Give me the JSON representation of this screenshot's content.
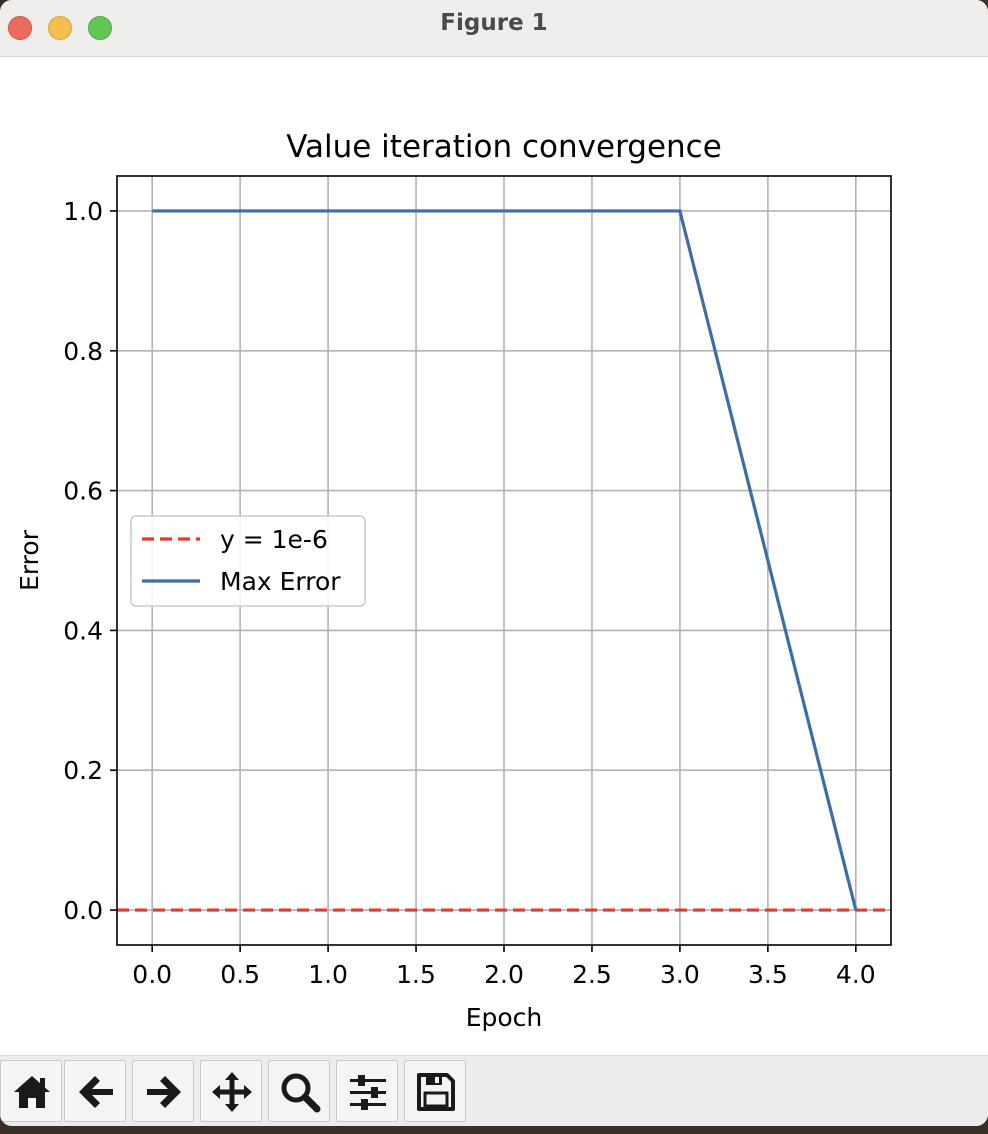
{
  "window": {
    "title": "Figure 1"
  },
  "colors": {
    "threshold_line": "#e8382c",
    "max_error_line": "#3a6ea8",
    "grid": "#b3b3b3"
  },
  "chart_data": {
    "type": "line",
    "title": "Value iteration convergence",
    "xlabel": "Epoch",
    "ylabel": "Error",
    "xlim": [
      -0.2,
      4.2
    ],
    "ylim": [
      -0.05,
      1.05
    ],
    "xticks": [
      0.0,
      0.5,
      1.0,
      1.5,
      2.0,
      2.5,
      3.0,
      3.5,
      4.0
    ],
    "xtick_labels": [
      "0.0",
      "0.5",
      "1.0",
      "1.5",
      "2.0",
      "2.5",
      "3.0",
      "3.5",
      "4.0"
    ],
    "yticks": [
      0.0,
      0.2,
      0.4,
      0.6,
      0.8,
      1.0
    ],
    "ytick_labels": [
      "0.0",
      "0.2",
      "0.4",
      "0.6",
      "0.8",
      "1.0"
    ],
    "grid": true,
    "legend_position": "center-left",
    "series": [
      {
        "name": "y = 1e-6",
        "style": "dashed",
        "color": "#e8382c",
        "x": [
          -0.2,
          4.2
        ],
        "y": [
          1e-06,
          1e-06
        ]
      },
      {
        "name": "Max Error",
        "style": "solid",
        "color": "#3a6ea8",
        "x": [
          0,
          1,
          2,
          3,
          4
        ],
        "y": [
          1.0,
          1.0,
          1.0,
          1.0,
          0.0
        ]
      }
    ]
  },
  "toolbar": {
    "buttons": [
      {
        "name": "home-button",
        "icon": "home-icon"
      },
      {
        "name": "back-button",
        "icon": "arrow-left-icon"
      },
      {
        "name": "forward-button",
        "icon": "arrow-right-icon"
      },
      {
        "name": "pan-button",
        "icon": "move-icon"
      },
      {
        "name": "zoom-button",
        "icon": "magnifier-icon"
      },
      {
        "name": "configure-subplots-button",
        "icon": "sliders-icon"
      },
      {
        "name": "save-button",
        "icon": "floppy-disk-icon"
      }
    ]
  }
}
